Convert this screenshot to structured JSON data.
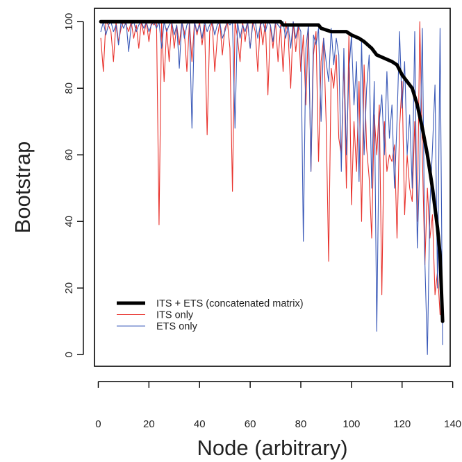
{
  "chart_data": {
    "type": "line",
    "title": "",
    "xlabel": "Node (arbitrary)",
    "ylabel": "Bootstrap",
    "xlim": [
      -1.5,
      139
    ],
    "ylim": [
      -3.5,
      104
    ],
    "xticks": [
      0,
      20,
      40,
      60,
      80,
      100,
      120,
      140
    ],
    "yticks": [
      0,
      20,
      40,
      60,
      80,
      100
    ],
    "grid": false,
    "legend_position": "bottom-left",
    "series": [
      {
        "name": "ITS + ETS (concatenated matrix)",
        "color": "#000000",
        "points": [
          [
            1,
            100
          ],
          [
            20,
            100
          ],
          [
            40,
            100
          ],
          [
            60,
            100
          ],
          [
            72,
            100
          ],
          [
            73,
            99
          ],
          [
            87,
            99
          ],
          [
            88,
            98
          ],
          [
            92,
            97
          ],
          [
            98,
            97
          ],
          [
            100,
            96
          ],
          [
            103,
            95
          ],
          [
            105,
            94
          ],
          [
            108,
            92
          ],
          [
            110,
            90
          ],
          [
            113,
            89
          ],
          [
            116,
            88
          ],
          [
            118,
            87
          ],
          [
            120,
            84
          ],
          [
            122,
            82
          ],
          [
            124,
            80
          ],
          [
            126,
            75
          ],
          [
            128,
            68
          ],
          [
            130,
            60
          ],
          [
            132,
            50
          ],
          [
            134,
            38
          ],
          [
            135,
            30
          ],
          [
            136,
            10
          ]
        ]
      },
      {
        "name": "ITS only",
        "color": "#e8312b",
        "points": [
          [
            1,
            95
          ],
          [
            2,
            85
          ],
          [
            3,
            100
          ],
          [
            4,
            99
          ],
          [
            5,
            97
          ],
          [
            6,
            88
          ],
          [
            7,
            100
          ],
          [
            8,
            94
          ],
          [
            9,
            98
          ],
          [
            10,
            100
          ],
          [
            11,
            99
          ],
          [
            12,
            97
          ],
          [
            13,
            100
          ],
          [
            14,
            95
          ],
          [
            15,
            99
          ],
          [
            16,
            92
          ],
          [
            17,
            100
          ],
          [
            18,
            96
          ],
          [
            19,
            100
          ],
          [
            20,
            94
          ],
          [
            21,
            100
          ],
          [
            22,
            99
          ],
          [
            23,
            100
          ],
          [
            24,
            39
          ],
          [
            25,
            100
          ],
          [
            26,
            82
          ],
          [
            27,
            98
          ],
          [
            28,
            88
          ],
          [
            29,
            100
          ],
          [
            30,
            92
          ],
          [
            31,
            99
          ],
          [
            32,
            93
          ],
          [
            33,
            100
          ],
          [
            34,
            97
          ],
          [
            35,
            85
          ],
          [
            36,
            100
          ],
          [
            37,
            88
          ],
          [
            38,
            100
          ],
          [
            39,
            96
          ],
          [
            40,
            100
          ],
          [
            41,
            93
          ],
          [
            42,
            99
          ],
          [
            43,
            66
          ],
          [
            44,
            97
          ],
          [
            45,
            100
          ],
          [
            46,
            85
          ],
          [
            47,
            95
          ],
          [
            48,
            100
          ],
          [
            49,
            90
          ],
          [
            50,
            98
          ],
          [
            51,
            100
          ],
          [
            52,
            92
          ],
          [
            53,
            49
          ],
          [
            54,
            100
          ],
          [
            55,
            95
          ],
          [
            56,
            88
          ],
          [
            57,
            100
          ],
          [
            58,
            94
          ],
          [
            59,
            100
          ],
          [
            60,
            92
          ],
          [
            61,
            100
          ],
          [
            62,
            97
          ],
          [
            63,
            85
          ],
          [
            64,
            100
          ],
          [
            65,
            93
          ],
          [
            66,
            100
          ],
          [
            67,
            78
          ],
          [
            68,
            99
          ],
          [
            69,
            92
          ],
          [
            70,
            100
          ],
          [
            71,
            88
          ],
          [
            72,
            99
          ],
          [
            73,
            85
          ],
          [
            74,
            100
          ],
          [
            75,
            96
          ],
          [
            76,
            80
          ],
          [
            77,
            100
          ],
          [
            78,
            91
          ],
          [
            79,
            99
          ],
          [
            80,
            85
          ],
          [
            81,
            96
          ],
          [
            82,
            75
          ],
          [
            83,
            99
          ],
          [
            84,
            55
          ],
          [
            85,
            90
          ],
          [
            86,
            97
          ],
          [
            87,
            58
          ],
          [
            88,
            88
          ],
          [
            89,
            95
          ],
          [
            90,
            70
          ],
          [
            91,
            28
          ],
          [
            92,
            86
          ],
          [
            93,
            80
          ],
          [
            94,
            90
          ],
          [
            95,
            65
          ],
          [
            96,
            60
          ],
          [
            97,
            88
          ],
          [
            98,
            50
          ],
          [
            99,
            96
          ],
          [
            100,
            45
          ],
          [
            101,
            70
          ],
          [
            102,
            55
          ],
          [
            103,
            82
          ],
          [
            104,
            40
          ],
          [
            105,
            87
          ],
          [
            106,
            62
          ],
          [
            107,
            53
          ],
          [
            108,
            35
          ],
          [
            109,
            72
          ],
          [
            110,
            60
          ],
          [
            111,
            75
          ],
          [
            112,
            18
          ],
          [
            113,
            70
          ],
          [
            114,
            55
          ],
          [
            115,
            60
          ],
          [
            116,
            58
          ],
          [
            117,
            63
          ],
          [
            118,
            35
          ],
          [
            119,
            68
          ],
          [
            120,
            82
          ],
          [
            121,
            42
          ],
          [
            122,
            60
          ],
          [
            123,
            50
          ],
          [
            124,
            46
          ],
          [
            125,
            70
          ],
          [
            126,
            40
          ],
          [
            127,
            100
          ],
          [
            128,
            60
          ],
          [
            129,
            27
          ],
          [
            130,
            50
          ],
          [
            131,
            35
          ],
          [
            132,
            42
          ],
          [
            133,
            18
          ],
          [
            134,
            25
          ],
          [
            135,
            12
          ]
        ]
      },
      {
        "name": "ETS only",
        "color": "#3a59b8",
        "points": [
          [
            1,
            97
          ],
          [
            2,
            100
          ],
          [
            3,
            96
          ],
          [
            4,
            99
          ],
          [
            5,
            100
          ],
          [
            6,
            97
          ],
          [
            7,
            99
          ],
          [
            8,
            93
          ],
          [
            9,
            100
          ],
          [
            10,
            98
          ],
          [
            11,
            100
          ],
          [
            12,
            91
          ],
          [
            13,
            99
          ],
          [
            14,
            100
          ],
          [
            15,
            97
          ],
          [
            16,
            99
          ],
          [
            17,
            100
          ],
          [
            18,
            98
          ],
          [
            19,
            100
          ],
          [
            20,
            97
          ],
          [
            21,
            99
          ],
          [
            22,
            100
          ],
          [
            23,
            98
          ],
          [
            24,
            100
          ],
          [
            25,
            92
          ],
          [
            26,
            100
          ],
          [
            27,
            97
          ],
          [
            28,
            99
          ],
          [
            29,
            100
          ],
          [
            30,
            96
          ],
          [
            31,
            99
          ],
          [
            32,
            86
          ],
          [
            33,
            100
          ],
          [
            34,
            95
          ],
          [
            35,
            99
          ],
          [
            36,
            100
          ],
          [
            37,
            68
          ],
          [
            38,
            100
          ],
          [
            39,
            97
          ],
          [
            40,
            99
          ],
          [
            41,
            95
          ],
          [
            42,
            100
          ],
          [
            43,
            97
          ],
          [
            44,
            99
          ],
          [
            45,
            100
          ],
          [
            46,
            96
          ],
          [
            47,
            99
          ],
          [
            48,
            100
          ],
          [
            49,
            95
          ],
          [
            50,
            97
          ],
          [
            51,
            100
          ],
          [
            52,
            99
          ],
          [
            53,
            100
          ],
          [
            54,
            68
          ],
          [
            55,
            100
          ],
          [
            56,
            95
          ],
          [
            57,
            99
          ],
          [
            58,
            97
          ],
          [
            59,
            100
          ],
          [
            60,
            92
          ],
          [
            61,
            99
          ],
          [
            62,
            100
          ],
          [
            63,
            95
          ],
          [
            64,
            99
          ],
          [
            65,
            100
          ],
          [
            66,
            97
          ],
          [
            67,
            100
          ],
          [
            68,
            99
          ],
          [
            69,
            94
          ],
          [
            70,
            100
          ],
          [
            71,
            99
          ],
          [
            72,
            98
          ],
          [
            73,
            100
          ],
          [
            74,
            95
          ],
          [
            75,
            99
          ],
          [
            76,
            92
          ],
          [
            77,
            100
          ],
          [
            78,
            95
          ],
          [
            79,
            99
          ],
          [
            80,
            97
          ],
          [
            81,
            34
          ],
          [
            82,
            92
          ],
          [
            83,
            99
          ],
          [
            84,
            55
          ],
          [
            85,
            96
          ],
          [
            86,
            93
          ],
          [
            87,
            98
          ],
          [
            88,
            70
          ],
          [
            89,
            95
          ],
          [
            90,
            88
          ],
          [
            91,
            82
          ],
          [
            92,
            98
          ],
          [
            93,
            87
          ],
          [
            94,
            95
          ],
          [
            95,
            90
          ],
          [
            96,
            55
          ],
          [
            97,
            92
          ],
          [
            98,
            60
          ],
          [
            99,
            85
          ],
          [
            100,
            96
          ],
          [
            101,
            75
          ],
          [
            102,
            88
          ],
          [
            103,
            52
          ],
          [
            104,
            94
          ],
          [
            105,
            60
          ],
          [
            106,
            80
          ],
          [
            107,
            90
          ],
          [
            108,
            50
          ],
          [
            109,
            82
          ],
          [
            110,
            7
          ],
          [
            111,
            70
          ],
          [
            112,
            78
          ],
          [
            113,
            60
          ],
          [
            114,
            85
          ],
          [
            115,
            65
          ],
          [
            116,
            75
          ],
          [
            117,
            50
          ],
          [
            118,
            70
          ],
          [
            119,
            97
          ],
          [
            120,
            74
          ],
          [
            121,
            88
          ],
          [
            122,
            60
          ],
          [
            123,
            72
          ],
          [
            124,
            50
          ],
          [
            125,
            97
          ],
          [
            126,
            32
          ],
          [
            127,
            58
          ],
          [
            128,
            98
          ],
          [
            129,
            28
          ],
          [
            130,
            0
          ],
          [
            131,
            45
          ],
          [
            132,
            62
          ],
          [
            133,
            81
          ],
          [
            134,
            20
          ],
          [
            135,
            98
          ],
          [
            136,
            3
          ]
        ]
      }
    ]
  }
}
